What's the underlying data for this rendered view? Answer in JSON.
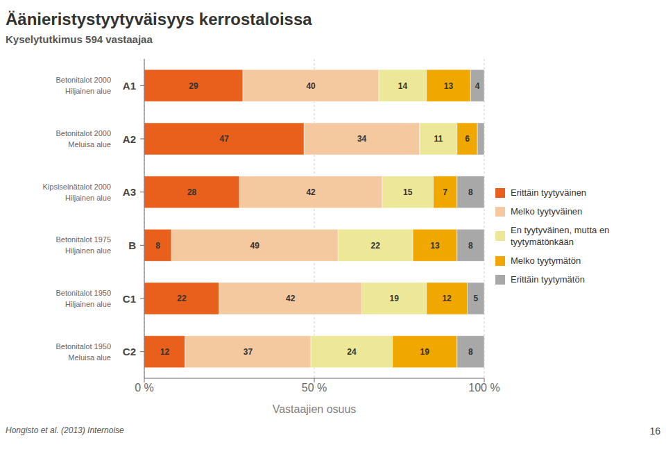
{
  "chart_data": {
    "type": "bar",
    "orientation": "horizontal",
    "stacked": true,
    "title": "Äänieristystyytyväisyys kerrostaloissa",
    "subtitle": "Kyselytutkimus 594 vastaajaa",
    "footnote": "Hongisto et al. (2013) Internoise",
    "page_number": "16",
    "xlabel": "Vastaajien osuus",
    "categories": [
      "A1",
      "A2",
      "A3",
      "B",
      "C1",
      "C2"
    ],
    "row_labels_line1": [
      "Betonitalot 2000",
      "Betonitalot 2000",
      "Kipsiseinätalot 2000",
      "Betonitalot 1975",
      "Betonitalot 1950",
      "Betonitalot 1950"
    ],
    "row_labels_line2": [
      "Hiljainen alue",
      "Meluisa alue",
      "Hiljainen alue",
      "Hiljainen alue",
      "Hiljainen alue",
      "Meluisa alue"
    ],
    "series": [
      {
        "name": "Erittäin tyytyväinen",
        "color": "#E8601C",
        "values": [
          29,
          47,
          28,
          8,
          22,
          12
        ],
        "value_labels": [
          "29",
          "47",
          "28",
          "8",
          "22",
          "12"
        ]
      },
      {
        "name": "Melko tyytyväinen",
        "color": "#F5C9A0",
        "values": [
          40,
          34,
          42,
          49,
          42,
          37
        ],
        "value_labels": [
          "40",
          "34",
          "42",
          "49",
          "42",
          "37"
        ]
      },
      {
        "name": "En tyytyväinen, mutta en\ntyytymätönkään",
        "color": "#EDE898",
        "values": [
          14,
          11,
          15,
          22,
          19,
          24
        ],
        "value_labels": [
          "14",
          "11",
          "15",
          "22",
          "19",
          "24"
        ]
      },
      {
        "name": "Melko tyytymätön",
        "color": "#F0A800",
        "values": [
          13,
          6,
          7,
          13,
          12,
          19
        ],
        "value_labels": [
          "13",
          "6",
          "7",
          "13",
          "12",
          "19"
        ]
      },
      {
        "name": "Erittäin tyytymätön",
        "color": "#A8A8A8",
        "values": [
          4,
          2,
          8,
          8,
          5,
          8
        ],
        "value_labels": [
          "4",
          null,
          "8",
          "8",
          "5",
          "8"
        ]
      }
    ],
    "xlim": [
      0,
      100
    ],
    "xticks": [
      {
        "value": 0,
        "label": "0 %"
      },
      {
        "value": 50,
        "label": "50 %"
      },
      {
        "value": 100,
        "label": "100 %"
      }
    ],
    "grid": true,
    "legend": "right",
    "data_labels": true
  }
}
